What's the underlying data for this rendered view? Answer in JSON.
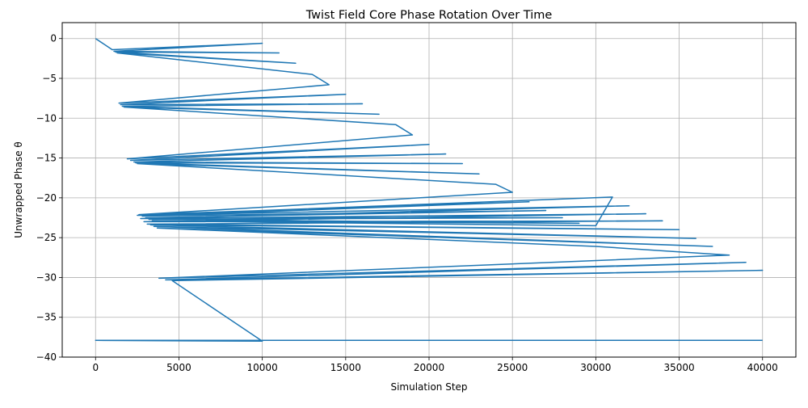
{
  "chart_data": {
    "type": "line",
    "title": "Twist Field Core Phase Rotation Over Time",
    "xlabel": "Simulation Step",
    "ylabel": "Unwrapped Phase θ",
    "xlim": [
      -2000,
      42000
    ],
    "ylim": [
      -40,
      2
    ],
    "xticks": [
      0,
      5000,
      10000,
      15000,
      20000,
      25000,
      30000,
      35000,
      40000
    ],
    "yticks": [
      0,
      -5,
      -10,
      -15,
      -20,
      -25,
      -30,
      -35,
      -40
    ],
    "grid": true,
    "line_color": "#1f77b4",
    "series": [
      {
        "x": [
          0,
          1000,
          10000,
          1100,
          11000,
          1200,
          12000,
          1300,
          13000,
          14000,
          1400,
          15000,
          1500,
          16000,
          1600,
          17000,
          1700,
          18000,
          19000,
          1900,
          20000,
          2100,
          21000,
          2300,
          22000,
          2400,
          23000,
          2500,
          24000,
          25000,
          2600,
          26000,
          2800,
          27000,
          3000,
          28000,
          3200,
          29000,
          3400,
          30000,
          31000,
          2500,
          32000,
          2700,
          33000,
          2900,
          34000,
          3100,
          35000,
          3300,
          36000,
          3500,
          37000,
          3700,
          30000,
          38000,
          3800,
          39000,
          4200,
          40000,
          4600,
          10000,
          0,
          40000
        ],
        "y": [
          0,
          -1.4,
          -0.6,
          -1.6,
          -1.8,
          -1.7,
          -3.1,
          -1.8,
          -4.5,
          -5.8,
          -8.1,
          -7.0,
          -8.3,
          -8.2,
          -8.5,
          -9.5,
          -8.6,
          -10.8,
          -12.1,
          -15.1,
          -13.3,
          -15.3,
          -14.5,
          -15.5,
          -15.7,
          -15.6,
          -17.0,
          -15.7,
          -18.3,
          -19.3,
          -22.1,
          -20.5,
          -22.3,
          -21.6,
          -22.5,
          -22.5,
          -22.7,
          -23.2,
          -22.9,
          -23.5,
          -19.9,
          -22.2,
          -21.0,
          -22.6,
          -22.0,
          -23.0,
          -22.9,
          -23.3,
          -24.0,
          -23.4,
          -25.1,
          -23.6,
          -26.1,
          -23.8,
          -26.1,
          -27.2,
          -30.1,
          -28.1,
          -30.3,
          -29.1,
          -30.4,
          -38.0,
          -37.9,
          -37.9
        ]
      }
    ]
  }
}
